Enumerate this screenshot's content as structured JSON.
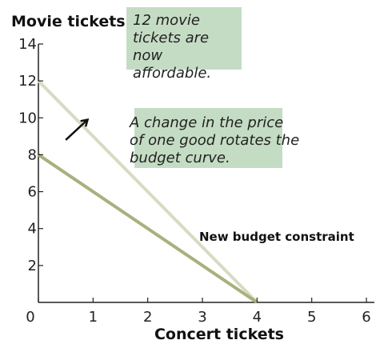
{
  "chart_data": {
    "type": "line",
    "xlabel": "Concert tickets",
    "ylabel": "Movie tickets",
    "xlim": [
      0,
      6
    ],
    "ylim": [
      0,
      14
    ],
    "x_ticks": [
      0,
      1,
      2,
      3,
      4,
      5,
      6
    ],
    "y_ticks": [
      2,
      4,
      6,
      8,
      10,
      12,
      14
    ],
    "series": [
      {
        "points": [
          [
            0,
            8
          ],
          [
            4,
            0
          ]
        ],
        "color": "#a9b07e"
      },
      {
        "name": "New budget constraint",
        "points": [
          [
            0,
            12
          ],
          [
            4,
            0
          ]
        ],
        "color": "#d5dcc0"
      }
    ],
    "annotations": [
      "12 movie tickets are now affordable.",
      "A change in the price of one good rotates the budget curve."
    ],
    "arrow": {
      "from": [
        0.5,
        8.8
      ],
      "to": [
        0.9,
        9.9
      ]
    },
    "grid": false,
    "colors": {
      "annotation_bg": "#c5dcc4",
      "axis": "#222222"
    }
  }
}
